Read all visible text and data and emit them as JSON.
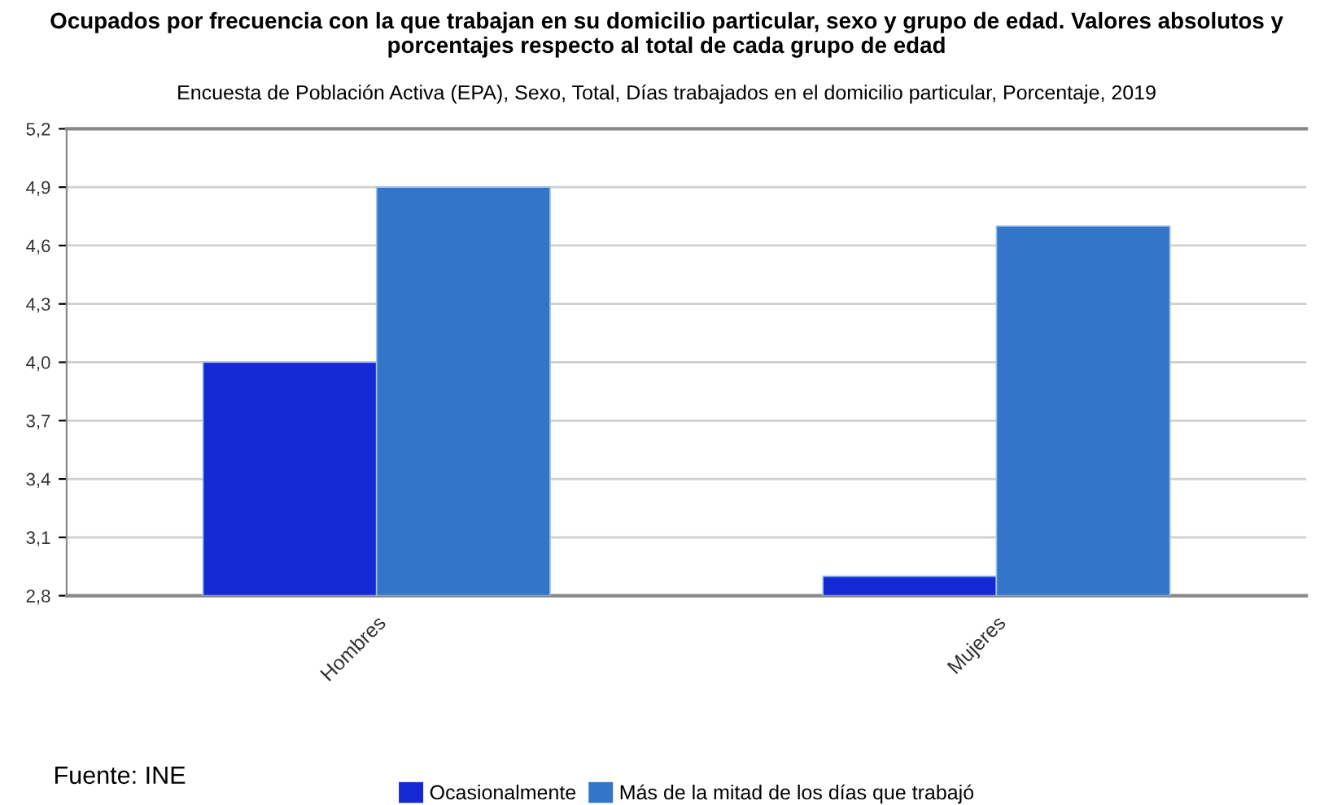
{
  "chart_data": {
    "type": "bar",
    "title": "Ocupados por frecuencia con la que trabajan en su domicilio particular, sexo y grupo de edad. Valores absolutos y porcentajes respecto al total de cada grupo de edad",
    "subtitle": "Encuesta de Población Activa (EPA), Sexo, Total, Días trabajados en el domicilio particular, Porcentaje, 2019",
    "categories": [
      "Hombres",
      "Mujeres"
    ],
    "series": [
      {
        "name": "Ocasionalmente",
        "color": "#1428d4",
        "values": [
          4.0,
          2.9
        ]
      },
      {
        "name": "Más de la mitad de los días que trabajó",
        "color": "#3375c8",
        "values": [
          4.9,
          4.7
        ]
      }
    ],
    "ylim": [
      2.8,
      5.2
    ],
    "yticks": [
      {
        "value": 2.8,
        "label": "2,8"
      },
      {
        "value": 3.1,
        "label": "3,1"
      },
      {
        "value": 3.4,
        "label": "3,4"
      },
      {
        "value": 3.7,
        "label": "3,7"
      },
      {
        "value": 4.0,
        "label": "4,0"
      },
      {
        "value": 4.3,
        "label": "4,3"
      },
      {
        "value": 4.6,
        "label": "4,6"
      },
      {
        "value": 4.9,
        "label": "4,9"
      },
      {
        "value": 5.2,
        "label": "5,2"
      }
    ],
    "grid": "y",
    "legend": "bottom",
    "annotations": [
      "Fuente: INE"
    ]
  }
}
